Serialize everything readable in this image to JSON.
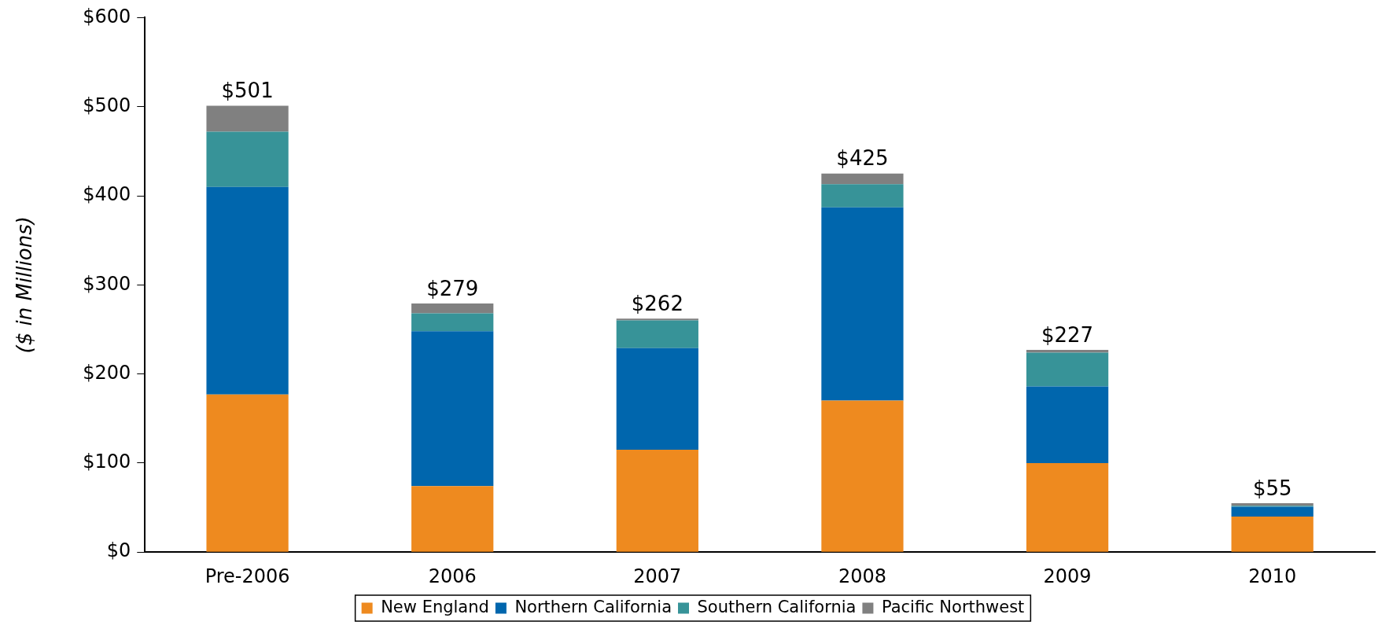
{
  "chart_data": {
    "type": "bar",
    "stacked": true,
    "ylabel": "($ in Millions)",
    "categories": [
      "Pre-2006",
      "2006",
      "2007",
      "2008",
      "2009",
      "2010"
    ],
    "series": [
      {
        "name": "New England",
        "color": "#ee8a1f",
        "values": [
          177,
          74,
          115,
          170,
          100,
          40
        ]
      },
      {
        "name": "Northern California",
        "color": "#0066ad",
        "values": [
          233,
          174,
          114,
          217,
          86,
          11
        ]
      },
      {
        "name": "Southern California",
        "color": "#379398",
        "values": [
          62,
          20,
          31,
          26,
          38,
          1
        ]
      },
      {
        "name": "Pacific Northwest",
        "color": "#808080",
        "values": [
          29,
          11,
          2,
          12,
          3,
          3
        ]
      }
    ],
    "totals": [
      "$501",
      "$279",
      "$262",
      "$425",
      "$227",
      "$55"
    ],
    "ylim": [
      0,
      600
    ],
    "yticks": [
      {
        "value": 0,
        "label": "$0"
      },
      {
        "value": 100,
        "label": "$100"
      },
      {
        "value": 200,
        "label": "$200"
      },
      {
        "value": 300,
        "label": "$300"
      },
      {
        "value": 400,
        "label": "$400"
      },
      {
        "value": 500,
        "label": "$500"
      },
      {
        "value": 600,
        "label": "$600"
      }
    ],
    "grid": false,
    "legend": "bottom"
  }
}
